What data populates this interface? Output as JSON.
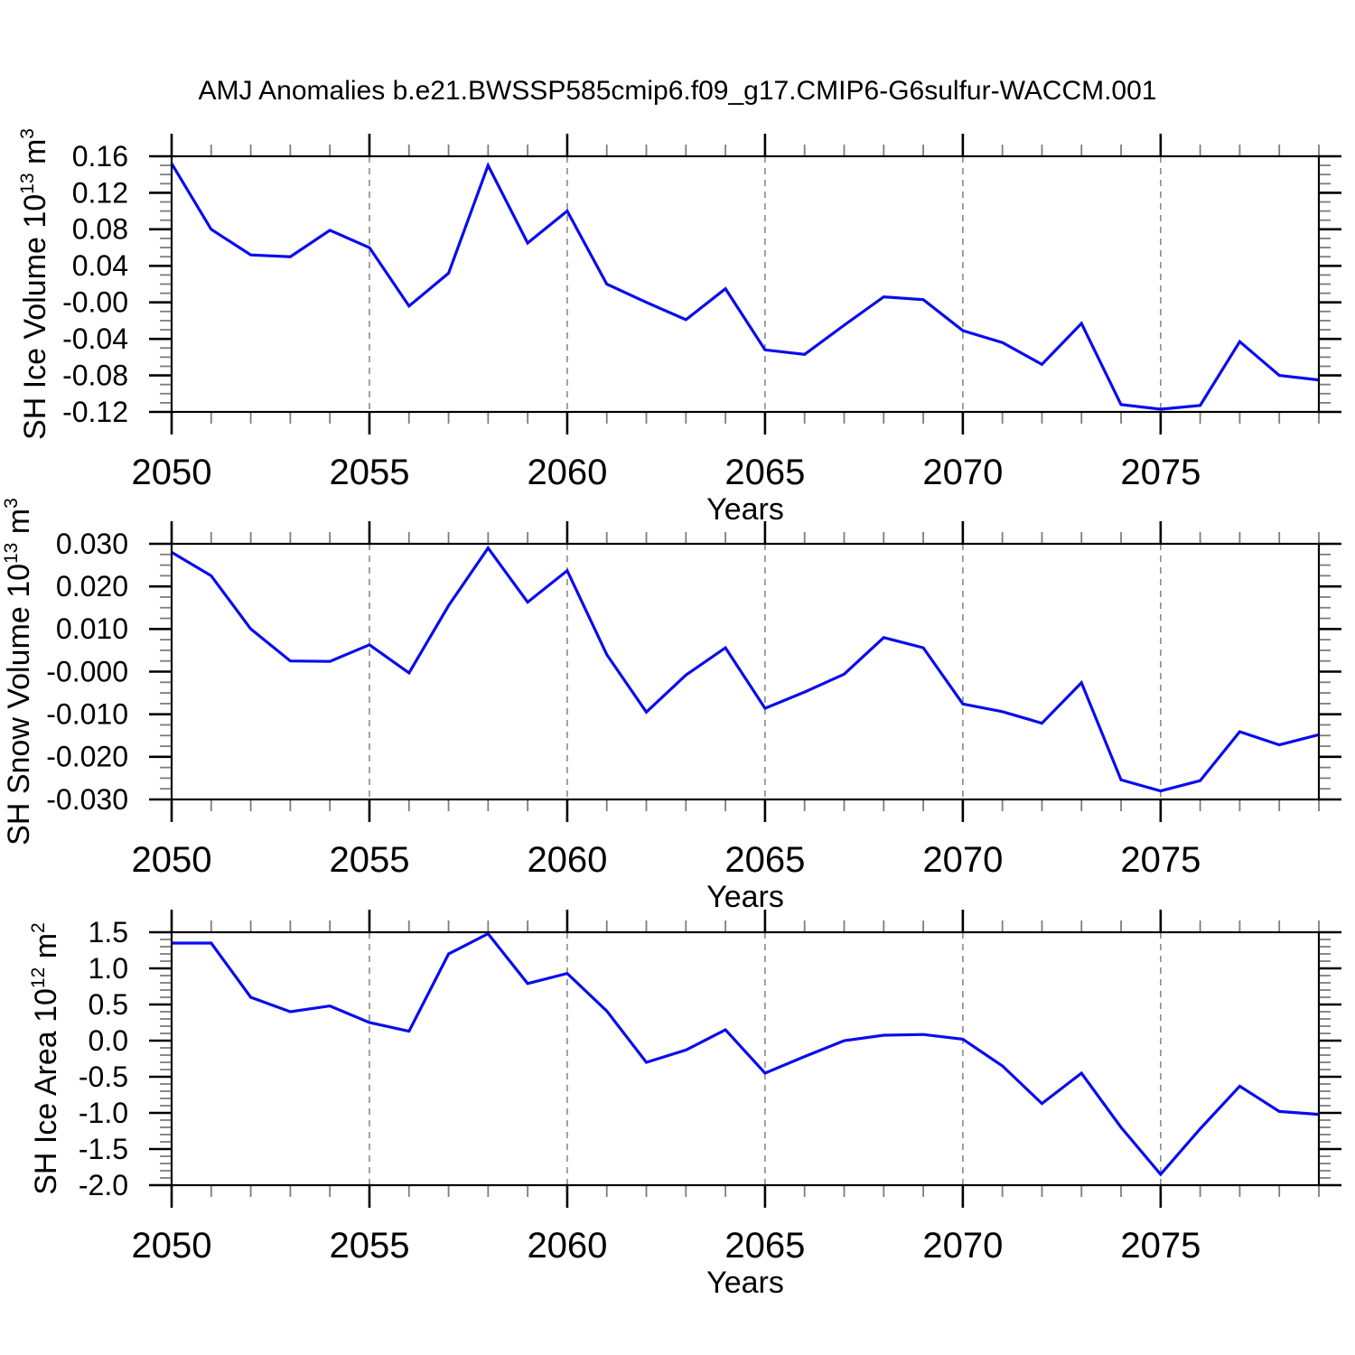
{
  "title": "AMJ Anomalies b.e21.BWSSP585cmip6.f09_g17.CMIP6-G6sulfur-WACCM.001",
  "colors": {
    "line": "#0b0bee",
    "axis": "#000000",
    "major_tick": "#000000",
    "minor_tick": "#7d7d7d",
    "grid": "#8a8a8a",
    "text": "#000000",
    "background": "#ffffff"
  },
  "chart_data": [
    {
      "id": "sh-ice-volume",
      "type": "line",
      "xlabel": "Years",
      "ylabel": "SH Ice Volume 10^13 m^3",
      "ylabel_parts": [
        {
          "text": "SH Ice Volume 10"
        },
        {
          "text": "13",
          "sup": true
        },
        {
          "text": " m"
        },
        {
          "text": "3",
          "sup": true
        }
      ],
      "xlim": [
        2050,
        2079
      ],
      "ylim": [
        -0.12,
        0.16
      ],
      "xticks_major": [
        2050,
        2055,
        2060,
        2065,
        2070,
        2075
      ],
      "xminor_step": 1,
      "ytick_step": 0.04,
      "yminor_step": 0.01,
      "ytick_decimals": 2,
      "grid_x": [
        2055,
        2060,
        2065,
        2070,
        2075
      ],
      "grid_style": "vertical-dashed",
      "legend": "none",
      "x": [
        2050,
        2051,
        2052,
        2053,
        2054,
        2055,
        2056,
        2057,
        2058,
        2059,
        2060,
        2061,
        2062,
        2063,
        2064,
        2065,
        2066,
        2067,
        2068,
        2069,
        2070,
        2071,
        2072,
        2073,
        2074,
        2075,
        2076,
        2077,
        2078,
        2079
      ],
      "values": [
        0.152,
        0.08,
        0.052,
        0.05,
        0.079,
        0.06,
        -0.004,
        0.032,
        0.15,
        0.065,
        0.1,
        0.02,
        0.0,
        -0.019,
        0.015,
        -0.052,
        -0.057,
        -0.025,
        0.006,
        0.003,
        -0.031,
        -0.044,
        -0.068,
        -0.023,
        -0.112,
        -0.117,
        -0.113,
        -0.043,
        -0.08,
        -0.085
      ]
    },
    {
      "id": "sh-snow-volume",
      "type": "line",
      "xlabel": "Years",
      "ylabel": "SH Snow Volume 10^13 m^3",
      "ylabel_parts": [
        {
          "text": "SH Snow Volume 10"
        },
        {
          "text": "13",
          "sup": true
        },
        {
          "text": " m"
        },
        {
          "text": "3",
          "sup": true
        }
      ],
      "xlim": [
        2050,
        2079
      ],
      "ylim": [
        -0.03,
        0.03
      ],
      "xticks_major": [
        2050,
        2055,
        2060,
        2065,
        2070,
        2075
      ],
      "xminor_step": 1,
      "ytick_step": 0.01,
      "yminor_step": 0.0025,
      "ytick_decimals": 3,
      "grid_x": [
        2055,
        2060,
        2065,
        2070,
        2075
      ],
      "grid_style": "vertical-dashed",
      "legend": "none",
      "x": [
        2050,
        2051,
        2052,
        2053,
        2054,
        2055,
        2056,
        2057,
        2058,
        2059,
        2060,
        2061,
        2062,
        2063,
        2064,
        2065,
        2066,
        2067,
        2068,
        2069,
        2070,
        2071,
        2072,
        2073,
        2074,
        2075,
        2076,
        2077,
        2078,
        2079
      ],
      "values": [
        0.028,
        0.0225,
        0.01,
        0.0025,
        0.0024,
        0.0063,
        -0.0003,
        0.0155,
        0.029,
        0.0163,
        0.0237,
        0.004,
        -0.0095,
        -0.0008,
        0.0056,
        -0.0086,
        -0.0048,
        -0.0006,
        0.008,
        0.0056,
        -0.0076,
        -0.0094,
        -0.0121,
        -0.0026,
        -0.0254,
        -0.028,
        -0.0256,
        -0.0141,
        -0.0172,
        -0.0148
      ]
    },
    {
      "id": "sh-ice-area",
      "type": "line",
      "xlabel": "Years",
      "ylabel": "SH Ice Area 10^12 m^2",
      "ylabel_parts": [
        {
          "text": "SH Ice Area 10"
        },
        {
          "text": "12",
          "sup": true
        },
        {
          "text": " m"
        },
        {
          "text": "2",
          "sup": true
        }
      ],
      "xlim": [
        2050,
        2079
      ],
      "ylim": [
        -2.0,
        1.5
      ],
      "xticks_major": [
        2050,
        2055,
        2060,
        2065,
        2070,
        2075
      ],
      "xminor_step": 1,
      "ytick_step": 0.5,
      "yminor_step": 0.1,
      "ytick_decimals": 1,
      "grid_x": [
        2055,
        2060,
        2065,
        2070,
        2075
      ],
      "grid_style": "vertical-dashed",
      "legend": "none",
      "x": [
        2050,
        2051,
        2052,
        2053,
        2054,
        2055,
        2056,
        2057,
        2058,
        2059,
        2060,
        2061,
        2062,
        2063,
        2064,
        2065,
        2066,
        2067,
        2068,
        2069,
        2070,
        2071,
        2072,
        2073,
        2074,
        2075,
        2076,
        2077,
        2078,
        2079
      ],
      "values": [
        1.35,
        1.35,
        0.6,
        0.4,
        0.48,
        0.25,
        0.13,
        1.2,
        1.48,
        0.79,
        0.93,
        0.41,
        -0.3,
        -0.13,
        0.15,
        -0.45,
        -0.22,
        0.0,
        0.075,
        0.085,
        0.02,
        -0.35,
        -0.87,
        -0.45,
        -1.2,
        -1.85,
        -1.22,
        -0.63,
        -0.98,
        -1.02
      ]
    }
  ]
}
